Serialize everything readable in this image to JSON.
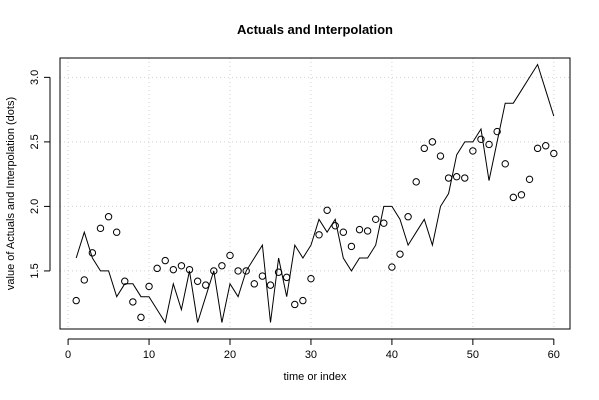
{
  "chart_data": {
    "type": "line",
    "title": "Actuals and Interpolation",
    "xlabel": "time or index",
    "ylabel": "value of Actuals and Interpolation (dots)",
    "xlim": [
      -1,
      62
    ],
    "ylim": [
      1.05,
      3.15
    ],
    "xticks": [
      0,
      10,
      20,
      30,
      40,
      50,
      60
    ],
    "yticks": [
      1.5,
      2.0,
      2.5,
      3.0
    ],
    "xtick_labels": [
      "0",
      "10",
      "20",
      "30",
      "40",
      "50",
      "60"
    ],
    "ytick_labels": [
      "1.5",
      "2.0",
      "2.5",
      "3.0"
    ],
    "grid": true,
    "series": [
      {
        "style": "line",
        "color": "#000000",
        "x": [
          1,
          2,
          3,
          4,
          5,
          6,
          7,
          8,
          9,
          10,
          11,
          12,
          13,
          14,
          15,
          16,
          17,
          18,
          19,
          20,
          21,
          22,
          23,
          24,
          25,
          26,
          27,
          28,
          29,
          30,
          31,
          32,
          33,
          34,
          35,
          36,
          37,
          38,
          39,
          40,
          41,
          42,
          43,
          44,
          45,
          46,
          47,
          48,
          49,
          50,
          51,
          52,
          53,
          54,
          55,
          56,
          57,
          58,
          59,
          60
        ],
        "y": [
          1.6,
          1.8,
          1.6,
          1.5,
          1.5,
          1.3,
          1.4,
          1.4,
          1.3,
          1.3,
          1.2,
          1.1,
          1.4,
          1.2,
          1.5,
          1.1,
          1.3,
          1.5,
          1.1,
          1.4,
          1.3,
          1.5,
          1.6,
          1.7,
          1.1,
          1.6,
          1.3,
          1.7,
          1.6,
          1.7,
          1.9,
          1.8,
          1.9,
          1.6,
          1.5,
          1.6,
          1.6,
          1.7,
          2.0,
          2.0,
          1.9,
          1.7,
          1.8,
          1.9,
          1.7,
          2.0,
          2.1,
          2.4,
          2.5,
          2.5,
          2.6,
          2.2,
          2.5,
          2.8,
          2.8,
          2.9,
          3.0,
          3.1,
          2.9,
          2.7
        ]
      },
      {
        "style": "points",
        "color": "#000000",
        "x": [
          1,
          2,
          3,
          4,
          5,
          6,
          7,
          8,
          9,
          10,
          11,
          12,
          13,
          14,
          15,
          16,
          17,
          18,
          19,
          20,
          21,
          22,
          23,
          24,
          25,
          26,
          27,
          28,
          29,
          30,
          31,
          32,
          33,
          34,
          35,
          36,
          37,
          38,
          39,
          40,
          41,
          42,
          43,
          44,
          45,
          46,
          47,
          48,
          49,
          50,
          51,
          52,
          53,
          54,
          55,
          56,
          57,
          58,
          59,
          60
        ],
        "y": [
          1.27,
          1.43,
          1.64,
          1.83,
          1.92,
          1.8,
          1.42,
          1.26,
          1.14,
          1.38,
          1.52,
          1.58,
          1.51,
          1.54,
          1.51,
          1.42,
          1.39,
          1.5,
          1.54,
          1.62,
          1.5,
          1.5,
          1.4,
          1.46,
          1.39,
          1.49,
          1.45,
          1.24,
          1.27,
          1.44,
          1.78,
          1.97,
          1.85,
          1.8,
          1.69,
          1.82,
          1.81,
          1.9,
          1.87,
          1.53,
          1.63,
          1.92,
          2.19,
          2.45,
          2.5,
          2.39,
          2.22,
          2.23,
          2.22,
          2.43,
          2.52,
          2.48,
          2.58,
          2.33,
          2.07,
          2.09,
          2.21,
          2.45,
          2.47,
          2.41
        ]
      }
    ]
  }
}
